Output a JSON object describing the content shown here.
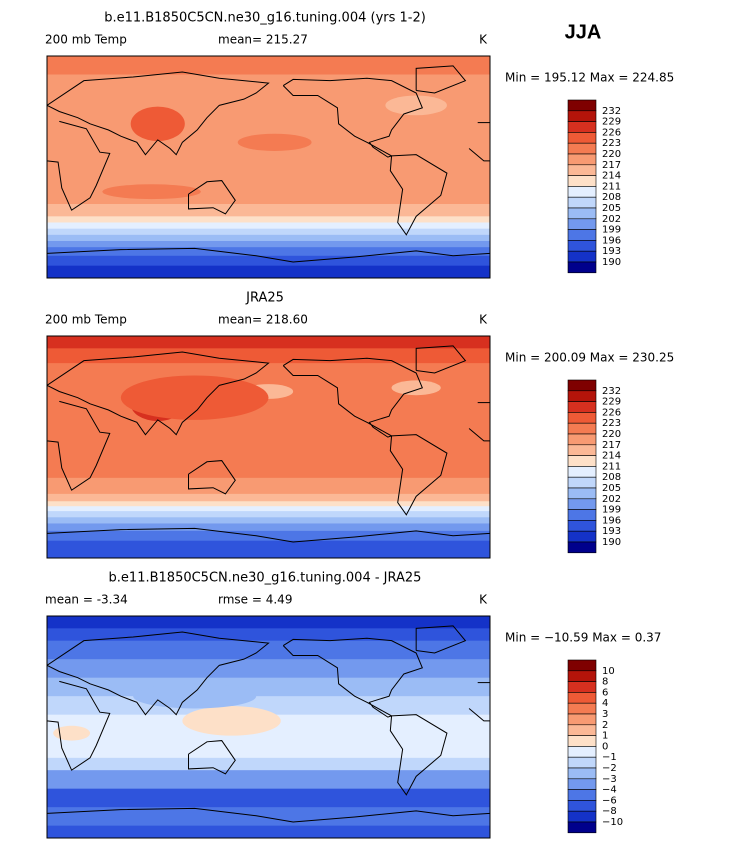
{
  "season": "JJA",
  "colors": [
    "#7f0000",
    "#b4140a",
    "#d7301f",
    "#ee5a36",
    "#f47b52",
    "#f89a72",
    "#fbb896",
    "#fde0c8",
    "#e4efff",
    "#c0d7fb",
    "#9bbcf5",
    "#7399ee",
    "#4d76e6",
    "#2f54dc",
    "#1432c8",
    "#00008c"
  ],
  "panels": [
    {
      "title": "b.e11.B1850C5CN.ne30_g16.tuning.004 (yrs 1-2)",
      "left_label": "200 mb Temp",
      "center_label": "mean= 215.27",
      "right_label": "K",
      "minmax": "Min = 195.12 Max = 224.85",
      "levels": [
        "232",
        "229",
        "226",
        "223",
        "220",
        "217",
        "214",
        "211",
        "208",
        "205",
        "202",
        "199",
        "196",
        "193",
        "190"
      ]
    },
    {
      "title": "JRA25",
      "left_label": "200 mb Temp",
      "center_label": "mean= 218.60",
      "right_label": "K",
      "minmax": "Min = 200.09 Max = 230.25",
      "levels": [
        "232",
        "229",
        "226",
        "223",
        "220",
        "217",
        "214",
        "211",
        "208",
        "205",
        "202",
        "199",
        "196",
        "193",
        "190"
      ]
    },
    {
      "title": "b.e11.B1850C5CN.ne30_g16.tuning.004 - JRA25",
      "left_label": "mean =   -3.34",
      "center_label": "rmse =    4.49",
      "right_label": "K",
      "minmax": "Min = −10.59 Max =   0.37",
      "levels": [
        "10",
        "8",
        "6",
        "4",
        "3",
        "2",
        "1",
        "0",
        "−1",
        "−2",
        "−3",
        "−4",
        "−6",
        "−8",
        "−10"
      ]
    }
  ]
}
